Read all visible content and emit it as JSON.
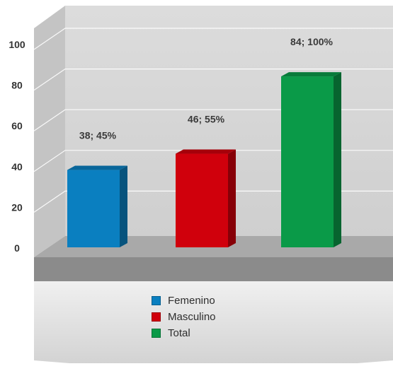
{
  "chart_data": {
    "type": "bar",
    "categories": [
      "Femenino",
      "Masculino",
      "Total"
    ],
    "values": [
      38,
      46,
      84
    ],
    "data_labels": [
      "38; 45%",
      "46; 55%",
      "84; 100%"
    ],
    "colors": [
      "#0a7fc0",
      "#d0000c",
      "#0a9a48"
    ],
    "ylim": [
      0,
      100
    ],
    "yticks": [
      "0",
      "20",
      "40",
      "60",
      "80",
      "100"
    ],
    "grid": true,
    "legend_position": "bottom",
    "title": "",
    "xlabel": "",
    "ylabel": ""
  },
  "legend": {
    "items": [
      {
        "label": "Femenino",
        "color": "#0a7fc0"
      },
      {
        "label": "Masculino",
        "color": "#d0000c"
      },
      {
        "label": "Total",
        "color": "#0a9a48"
      }
    ]
  }
}
